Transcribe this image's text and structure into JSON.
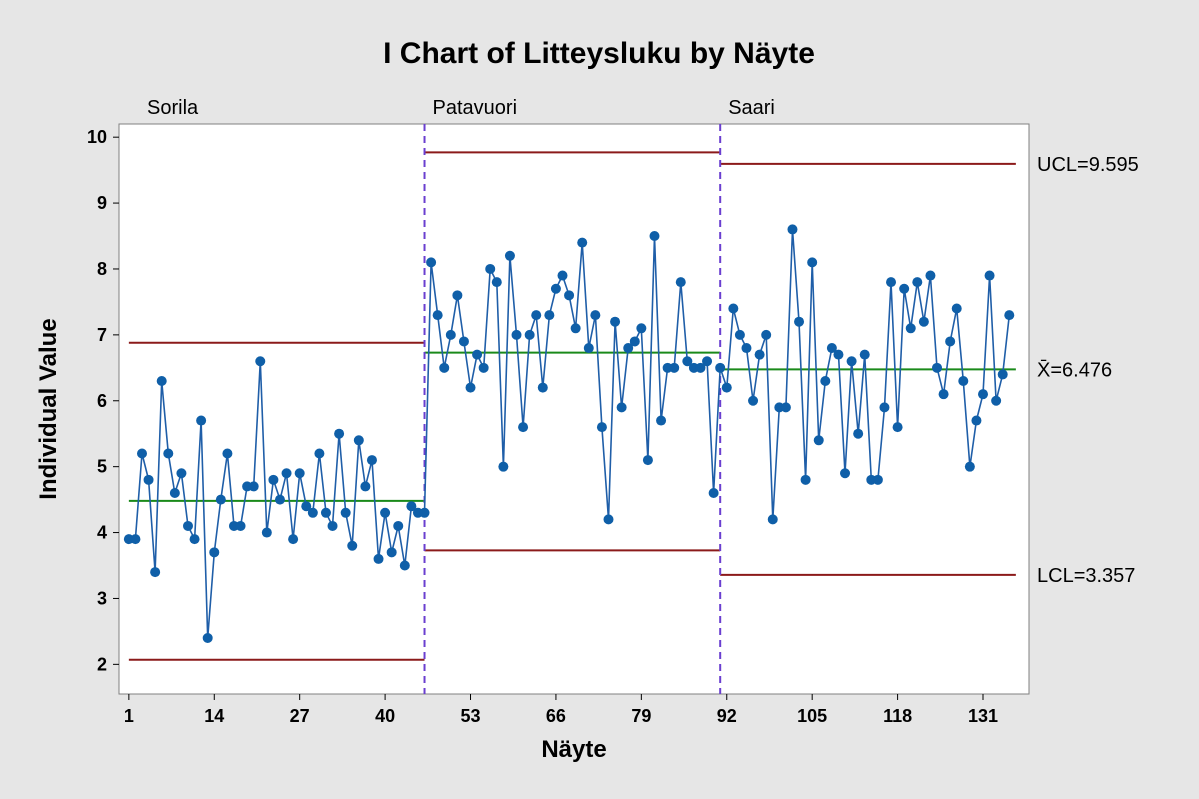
{
  "chart_data": {
    "type": "line",
    "title": "I Chart of Litteysluku by Näyte",
    "xlabel": "Näyte",
    "ylabel": "Individual Value",
    "x_ticks": [
      1,
      14,
      27,
      40,
      53,
      66,
      79,
      92,
      105,
      118,
      131
    ],
    "y_ticks": [
      2,
      3,
      4,
      5,
      6,
      7,
      8,
      9,
      10
    ],
    "xlim": [
      -0.5,
      138
    ],
    "ylim": [
      1.55,
      10.2
    ],
    "grid": false,
    "colors": {
      "background": "#e6e6e6",
      "plot_bg": "#ffffff",
      "series": "#1f5ea8",
      "marker": "#0f5fa8",
      "center_line": "#1a8a1a",
      "limit_line": "#8b1a1a",
      "stage_divider": "#6a3fd0"
    },
    "stages": [
      {
        "name": "Sorila",
        "x_start": 1,
        "x_end": 46,
        "center": 4.48,
        "ucl": 6.88,
        "lcl": 2.07
      },
      {
        "name": "Patavuori",
        "x_start": 46,
        "x_end": 91,
        "center": 6.73,
        "ucl": 9.77,
        "lcl": 3.73
      },
      {
        "name": "Saari",
        "x_start": 91,
        "x_end": 136,
        "center": 6.476,
        "ucl": 9.595,
        "lcl": 3.357
      }
    ],
    "reference_labels": {
      "ucl": "UCL=9.595",
      "center": "X̄=6.476",
      "lcl": "LCL=3.357"
    },
    "series": [
      {
        "x": [
          1,
          2,
          3,
          4,
          5,
          6,
          7,
          8,
          9,
          10,
          11,
          12,
          13,
          14,
          15,
          16,
          17,
          18,
          19,
          20,
          21,
          22,
          23,
          24,
          25,
          26,
          27,
          28,
          29,
          30,
          31,
          32,
          33,
          34,
          35,
          36,
          37,
          38,
          39,
          40,
          41,
          42,
          43,
          44,
          45,
          46,
          47,
          48,
          49,
          50,
          51,
          52,
          53,
          54,
          55,
          56,
          57,
          58,
          59,
          60,
          61,
          62,
          63,
          64,
          65,
          66,
          67,
          68,
          69,
          70,
          71,
          72,
          73,
          74,
          75,
          76,
          77,
          78,
          79,
          80,
          81,
          82,
          83,
          84,
          85,
          86,
          87,
          88,
          89,
          90,
          91,
          92,
          93,
          94,
          95,
          96,
          97,
          98,
          99,
          100,
          101,
          102,
          103,
          104,
          105,
          106,
          107,
          108,
          109,
          110,
          111,
          112,
          113,
          114,
          115,
          116,
          117,
          118,
          119,
          120,
          121,
          122,
          123,
          124,
          125,
          126,
          127,
          128,
          129,
          130,
          131,
          132,
          133,
          134,
          135
        ],
        "values": [
          3.9,
          3.9,
          5.2,
          4.8,
          3.4,
          6.3,
          5.2,
          4.6,
          4.9,
          4.1,
          3.9,
          5.7,
          2.4,
          3.7,
          4.5,
          5.2,
          4.1,
          4.1,
          4.7,
          4.7,
          6.6,
          4.0,
          4.8,
          4.5,
          4.9,
          3.9,
          4.9,
          4.4,
          4.3,
          5.2,
          4.3,
          4.1,
          5.5,
          4.3,
          3.8,
          5.4,
          4.7,
          5.1,
          3.6,
          4.3,
          3.7,
          4.1,
          3.5,
          4.4,
          4.3,
          4.3,
          8.1,
          7.3,
          6.5,
          7.0,
          7.6,
          6.9,
          6.2,
          6.7,
          6.5,
          8.0,
          7.8,
          5.0,
          8.2,
          7.0,
          5.6,
          7.0,
          7.3,
          6.2,
          7.3,
          7.7,
          7.9,
          7.6,
          7.1,
          8.4,
          6.8,
          7.3,
          5.6,
          4.2,
          7.2,
          5.9,
          6.8,
          6.9,
          7.1,
          5.1,
          8.5,
          5.7,
          6.5,
          6.5,
          7.8,
          6.6,
          6.5,
          6.5,
          6.6,
          4.6,
          6.5,
          6.2,
          7.4,
          7.0,
          6.8,
          6.0,
          6.7,
          7.0,
          4.2,
          5.9,
          5.9,
          8.6,
          7.2,
          4.8,
          8.1,
          5.4,
          6.3,
          6.8,
          6.7,
          4.9,
          6.6,
          5.5,
          6.7,
          4.8,
          4.8,
          5.9,
          7.8,
          5.6,
          7.7,
          7.1,
          7.8,
          7.2,
          7.9,
          6.5,
          6.1,
          6.9,
          7.4,
          6.3,
          5.0,
          5.7,
          6.1,
          7.9,
          6.0,
          6.4,
          7.3
        ]
      }
    ]
  }
}
